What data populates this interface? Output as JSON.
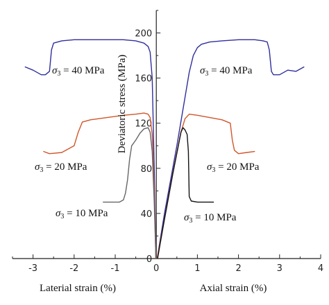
{
  "chart_data": {
    "type": "line",
    "xlabel_left": "Laterial strain (%)",
    "xlabel_right": "Axial strain (%)",
    "ylabel": "Deviatoric stress (MPa)",
    "xlim": [
      -3.5,
      4
    ],
    "ylim": [
      0,
      220
    ],
    "xticks": [
      -3,
      -2,
      -1,
      0,
      1,
      2,
      3,
      4
    ],
    "yticks": [
      0,
      40,
      80,
      120,
      160,
      200
    ],
    "grid": false,
    "annotations": [
      {
        "prefix": "σ",
        "sub": "3",
        "value": " = 40 MPa",
        "series": "40",
        "side": "lateral"
      },
      {
        "prefix": "σ",
        "sub": "3",
        "value": " = 40 MPa",
        "series": "40",
        "side": "axial"
      },
      {
        "prefix": "σ",
        "sub": "3",
        "value": " = 20 MPa",
        "series": "20",
        "side": "lateral"
      },
      {
        "prefix": "σ",
        "sub": "3",
        "value": " = 20 MPa",
        "series": "20",
        "side": "axial"
      },
      {
        "prefix": "σ",
        "sub": "3",
        "value": " = 10 MPa",
        "series": "10",
        "side": "lateral"
      },
      {
        "prefix": "σ",
        "sub": "3",
        "value": " = 10 MPa",
        "series": "10",
        "side": "axial"
      }
    ],
    "series": [
      {
        "key": "40-axial",
        "color": "#2e2e9c",
        "x": [
          0.02,
          0.2,
          0.5,
          0.8,
          0.9,
          1.0,
          1.1,
          1.3,
          1.6,
          2.0,
          2.4,
          2.6,
          2.7,
          2.75,
          2.8,
          2.85,
          3.0,
          3.2,
          3.4,
          3.6
        ],
        "y": [
          0,
          40,
          100,
          165,
          180,
          187,
          190,
          192,
          193,
          194,
          194,
          193,
          192,
          185,
          166,
          163,
          163,
          167,
          166,
          170
        ]
      },
      {
        "key": "40-lateral",
        "color": "#2e2e9c",
        "x": [
          -0.01,
          -0.05,
          -0.1,
          -0.15,
          -0.2,
          -0.3,
          -0.5,
          -0.8,
          -1.2,
          -1.6,
          -2.0,
          -2.3,
          -2.5,
          -2.55,
          -2.6,
          -2.7,
          -2.8,
          -3.0,
          -3.2
        ],
        "y": [
          0,
          80,
          160,
          183,
          188,
          191,
          193,
          194,
          194,
          194,
          194,
          193,
          191,
          185,
          166,
          163,
          163,
          167,
          170
        ]
      },
      {
        "key": "20-axial",
        "color": "#d0552a",
        "x": [
          0.02,
          0.2,
          0.4,
          0.6,
          0.7,
          0.8,
          1.0,
          1.3,
          1.6,
          1.8,
          1.85,
          1.9,
          2.0,
          2.2,
          2.4
        ],
        "y": [
          0,
          35,
          75,
          112,
          124,
          128,
          127,
          125,
          123,
          120,
          105,
          96,
          93,
          94,
          95
        ]
      },
      {
        "key": "20-lateral",
        "color": "#d0552a",
        "x": [
          -0.01,
          -0.05,
          -0.1,
          -0.15,
          -0.2,
          -0.3,
          -0.5,
          -0.8,
          -1.2,
          -1.6,
          -1.8,
          -1.9,
          -2.0,
          -2.3,
          -2.6,
          -2.75
        ],
        "y": [
          0,
          60,
          110,
          125,
          128,
          129,
          128,
          127,
          125,
          123,
          121,
          112,
          100,
          94,
          93,
          95
        ]
      },
      {
        "key": "10-axial",
        "color": "#111111",
        "x": [
          0.03,
          0.2,
          0.4,
          0.6,
          0.65,
          0.7,
          0.75,
          0.78,
          0.8,
          0.85,
          1.0,
          1.2,
          1.4
        ],
        "y": [
          0,
          35,
          75,
          112,
          116,
          114,
          110,
          95,
          55,
          51,
          50,
          50,
          50
        ]
      },
      {
        "key": "10-lateral",
        "color": "#666666",
        "x": [
          -0.01,
          -0.05,
          -0.1,
          -0.15,
          -0.2,
          -0.3,
          -0.4,
          -0.5,
          -0.6,
          -0.65,
          -0.7,
          -0.75,
          -0.8,
          -0.85,
          -0.9,
          -1.0,
          -1.1,
          -1.2,
          -1.3
        ],
        "y": [
          0,
          50,
          95,
          112,
          116,
          115,
          111,
          105,
          100,
          88,
          70,
          58,
          52,
          51,
          50,
          50,
          50,
          50,
          50
        ]
      }
    ]
  }
}
